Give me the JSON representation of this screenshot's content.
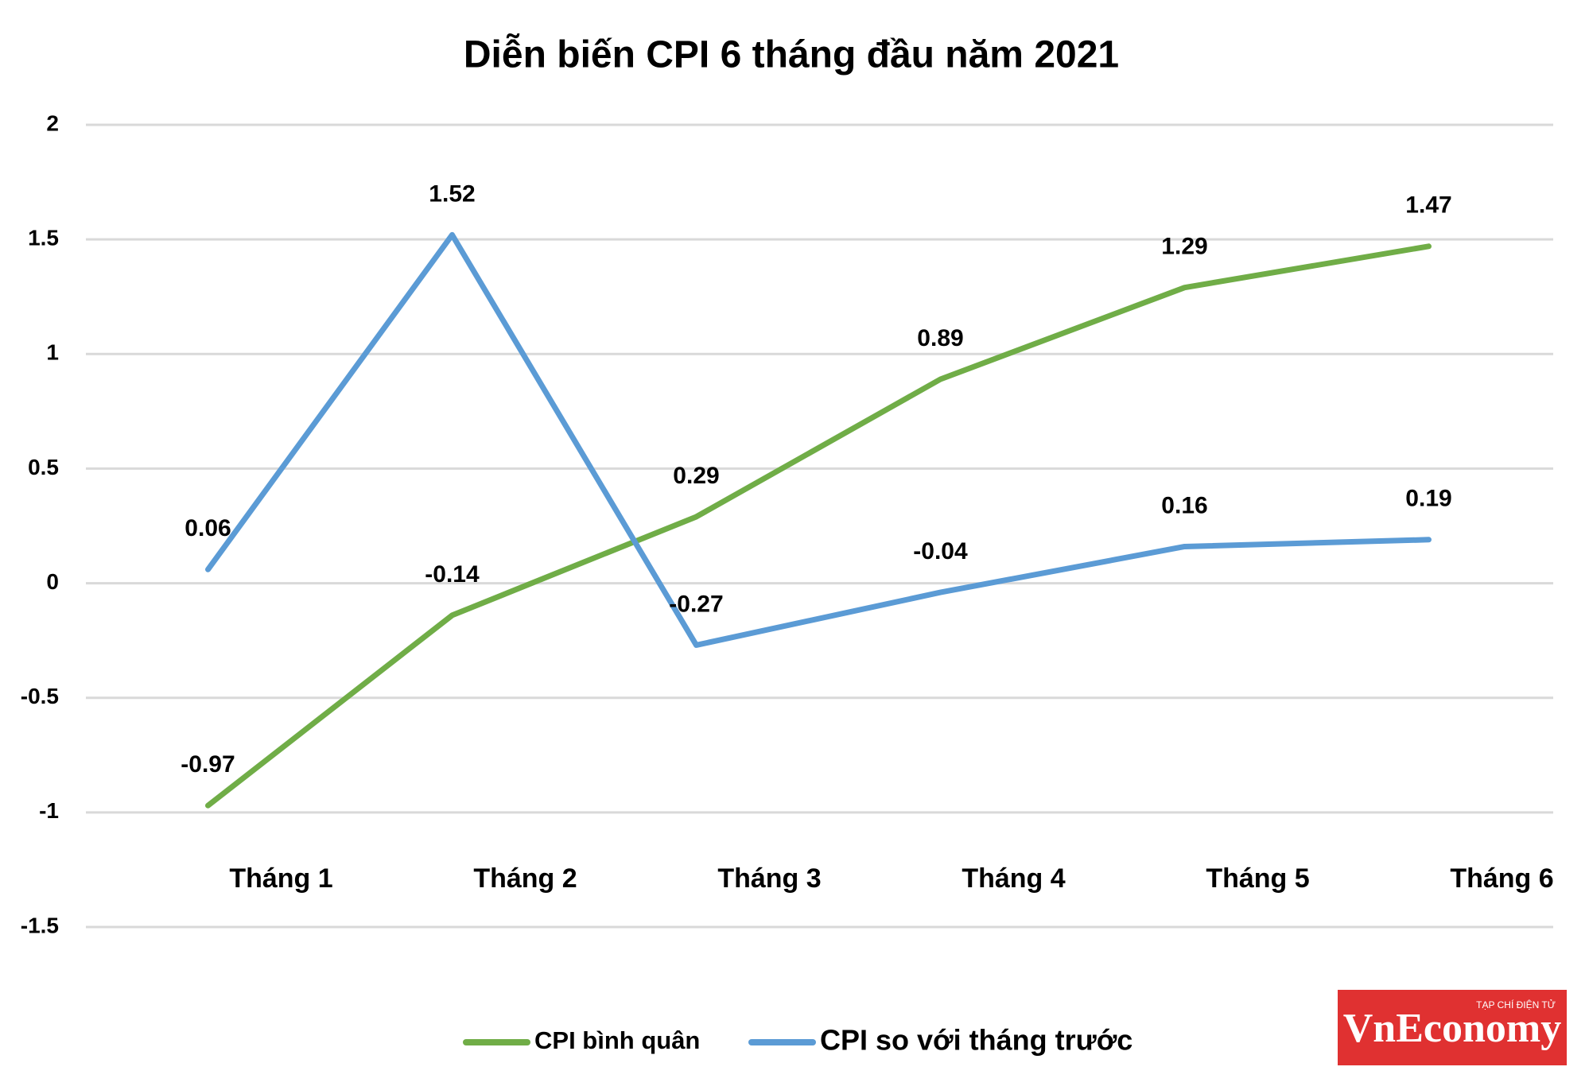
{
  "chart_data": {
    "type": "line",
    "title": "Diễn biến CPI 6 tháng đầu năm 2021",
    "categories": [
      "Tháng 1",
      "Tháng 2",
      "Tháng 3",
      "Tháng 4",
      "Tháng 5",
      "Tháng 6"
    ],
    "series": [
      {
        "name": "CPI bình quân",
        "color": "#70ad47",
        "values": [
          -0.97,
          -0.14,
          0.29,
          0.89,
          1.29,
          1.47
        ]
      },
      {
        "name": "CPI so với tháng trước",
        "color": "#5b9bd5",
        "values": [
          0.06,
          1.52,
          -0.27,
          -0.04,
          0.16,
          0.19
        ]
      }
    ],
    "ylim": [
      -1.5,
      2
    ],
    "yticks": [
      -1.5,
      -1,
      -0.5,
      0,
      0.5,
      1,
      1.5,
      2
    ],
    "grid": true,
    "legend": "bottom"
  },
  "logo": {
    "tagline": "TẠP CHÍ ĐIỆN TỬ",
    "name": "VnEconomy"
  }
}
